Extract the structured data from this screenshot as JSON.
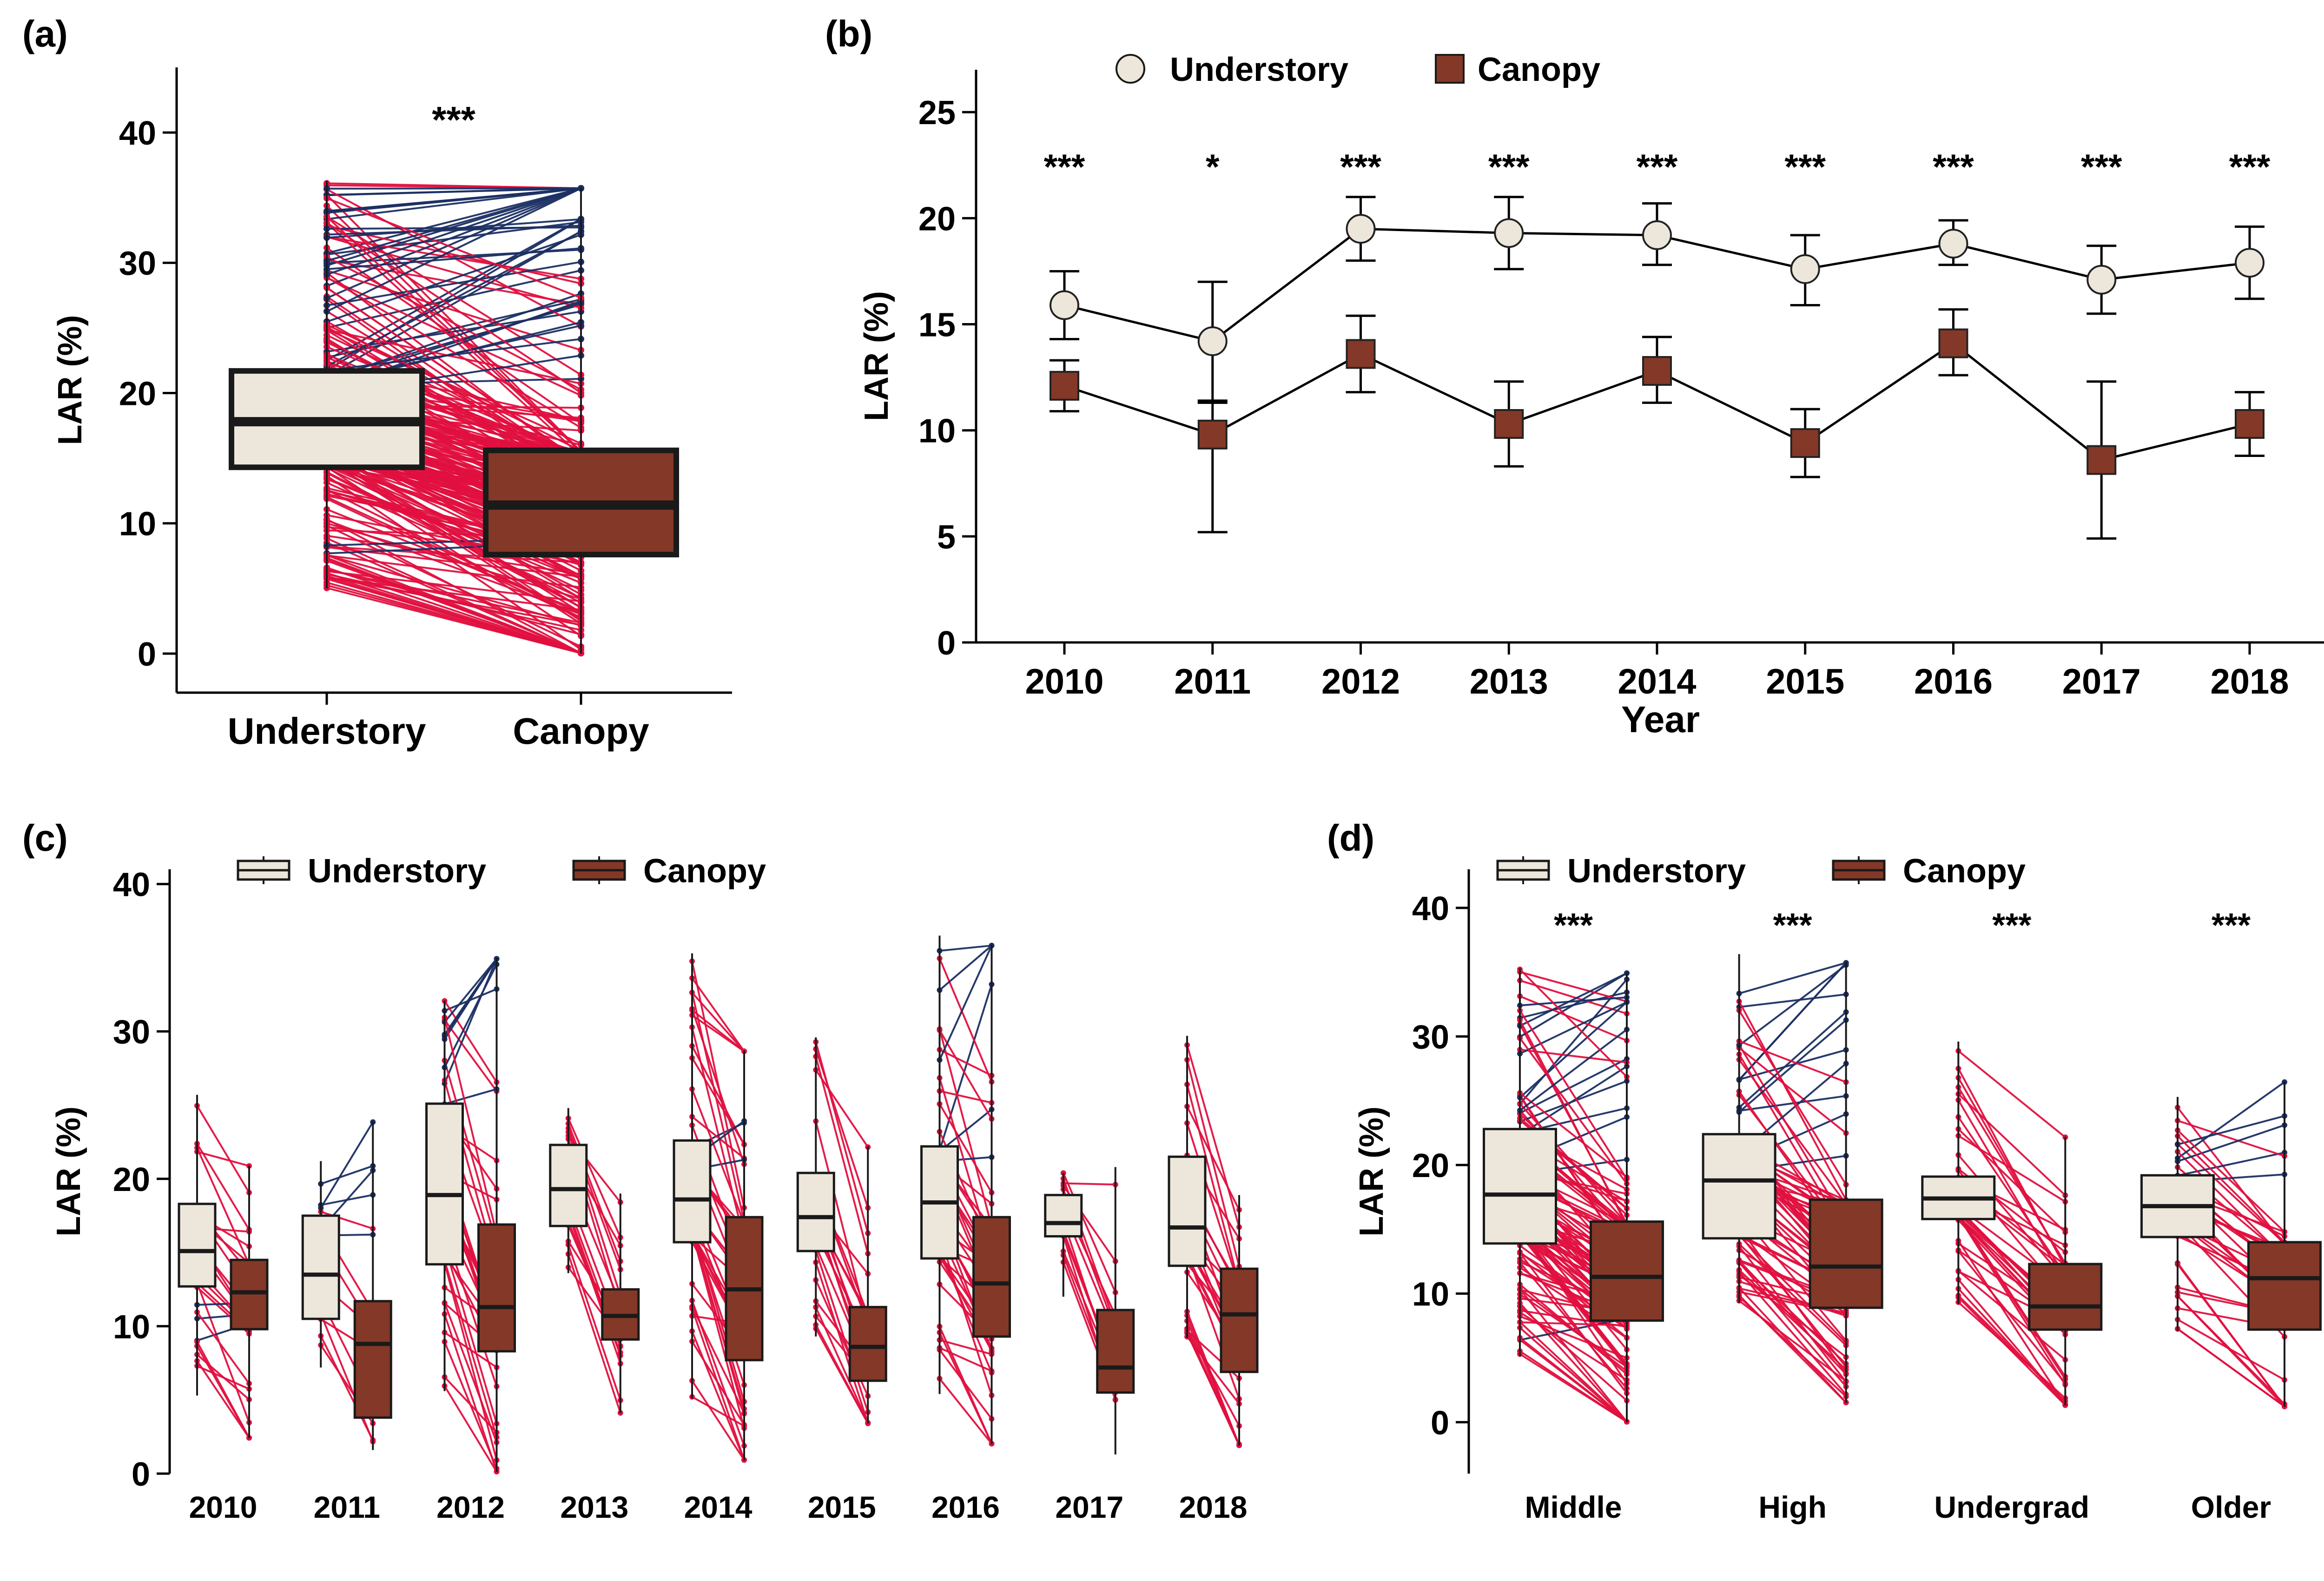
{
  "colors": {
    "understory": "#EDE7DB",
    "canopy": "#843827",
    "increase_line": "#E0103F",
    "decrease_line": "#1B2F63",
    "box_outline": "#1a1a1a",
    "axis": "#000000"
  },
  "chart_data": [
    {
      "panel": "(a)",
      "type": "box",
      "categories": [
        "Understory",
        "Canopy"
      ],
      "ylabel": "LAR (%)",
      "xlabel": "",
      "ylim": [
        -3,
        45
      ],
      "yticks": [
        0,
        10,
        20,
        30,
        40
      ],
      "boxes": [
        {
          "name": "Understory",
          "q1": 14.3,
          "median": 17.8,
          "q3": 21.7,
          "min": 5.0,
          "max": 36.3
        },
        {
          "name": "Canopy",
          "q1": 7.6,
          "median": 11.4,
          "q3": 15.6,
          "min": 0.0,
          "max": 35.8
        }
      ],
      "paired_lines": true,
      "annotation": "***"
    },
    {
      "panel": "(b)",
      "type": "line",
      "x": [
        "2010",
        "2011",
        "2012",
        "2013",
        "2014",
        "2015",
        "2016",
        "2017",
        "2018"
      ],
      "xlabel": "Year",
      "ylabel": "LAR (%)",
      "ylim": [
        0,
        27
      ],
      "yticks": [
        0,
        5,
        10,
        15,
        20,
        25
      ],
      "legend": "top",
      "series": [
        {
          "name": "Understory",
          "marker": "circle",
          "values": [
            15.9,
            14.2,
            19.5,
            19.3,
            19.2,
            17.6,
            18.8,
            17.1,
            17.9
          ],
          "lower": [
            14.3,
            11.4,
            18.0,
            17.6,
            17.8,
            15.9,
            17.8,
            15.5,
            16.2
          ],
          "upper": [
            17.5,
            17.0,
            21.0,
            21.0,
            20.7,
            19.2,
            19.9,
            18.7,
            19.6
          ]
        },
        {
          "name": "Canopy",
          "marker": "square",
          "values": [
            12.1,
            9.8,
            13.6,
            10.3,
            12.8,
            9.4,
            14.1,
            8.6,
            10.3
          ],
          "lower": [
            10.9,
            5.2,
            11.8,
            8.3,
            11.3,
            7.8,
            12.6,
            4.9,
            8.8
          ],
          "upper": [
            13.3,
            11.3,
            15.4,
            12.3,
            14.4,
            11.0,
            15.7,
            12.3,
            11.8
          ]
        }
      ],
      "annotations": [
        "***",
        "*",
        "***",
        "***",
        "***",
        "***",
        "***",
        "***",
        "***"
      ]
    },
    {
      "panel": "(c)",
      "type": "box",
      "categories": [
        "2010",
        "2011",
        "2012",
        "2013",
        "2014",
        "2015",
        "2016",
        "2017",
        "2018"
      ],
      "ylabel": "LAR (%)",
      "ylim": [
        0,
        41
      ],
      "yticks": [
        0,
        10,
        20,
        30,
        40
      ],
      "legend": "top",
      "series": [
        {
          "name": "Understory",
          "boxes": [
            {
              "q1": 12.7,
              "median": 15.1,
              "q3": 18.3,
              "min": 5.3,
              "max": 25.7
            },
            {
              "q1": 10.5,
              "median": 13.5,
              "q3": 17.5,
              "min": 7.2,
              "max": 21.2
            },
            {
              "q1": 14.2,
              "median": 18.9,
              "q3": 25.1,
              "min": 5.6,
              "max": 32.1
            },
            {
              "q1": 16.8,
              "median": 19.3,
              "q3": 22.3,
              "min": 13.6,
              "max": 24.8
            },
            {
              "q1": 15.7,
              "median": 18.6,
              "q3": 22.6,
              "min": 5.1,
              "max": 35.3
            },
            {
              "q1": 15.1,
              "median": 17.4,
              "q3": 20.4,
              "min": 9.3,
              "max": 29.6
            },
            {
              "q1": 14.6,
              "median": 18.4,
              "q3": 22.2,
              "min": 5.4,
              "max": 36.5
            },
            {
              "q1": 16.1,
              "median": 17.0,
              "q3": 18.9,
              "min": 12.0,
              "max": 20.4
            },
            {
              "q1": 14.1,
              "median": 16.7,
              "q3": 21.5,
              "min": 9.2,
              "max": 29.7
            }
          ]
        },
        {
          "name": "Canopy",
          "boxes": [
            {
              "q1": 9.8,
              "median": 12.3,
              "q3": 14.5,
              "min": 2.4,
              "max": 20.9
            },
            {
              "q1": 3.8,
              "median": 8.8,
              "q3": 11.7,
              "min": 1.6,
              "max": 23.9
            },
            {
              "q1": 8.3,
              "median": 11.3,
              "q3": 16.9,
              "min": 0.1,
              "max": 35.0
            },
            {
              "q1": 9.1,
              "median": 10.7,
              "q3": 12.5,
              "min": 4.1,
              "max": 19.0
            },
            {
              "q1": 7.7,
              "median": 12.5,
              "q3": 17.4,
              "min": 0.9,
              "max": 28.7
            },
            {
              "q1": 6.3,
              "median": 8.6,
              "q3": 11.3,
              "min": 3.4,
              "max": 22.2
            },
            {
              "q1": 9.3,
              "median": 12.9,
              "q3": 17.4,
              "min": 2.0,
              "max": 35.9
            },
            {
              "q1": 5.5,
              "median": 7.2,
              "q3": 11.1,
              "min": 1.3,
              "max": 20.8
            },
            {
              "q1": 6.9,
              "median": 10.8,
              "q3": 13.9,
              "min": 1.9,
              "max": 18.9
            }
          ]
        }
      ],
      "paired_lines": true
    },
    {
      "panel": "(d)",
      "type": "box",
      "categories": [
        "Middle",
        "High",
        "Undergrad",
        "Older"
      ],
      "ylabel": "LAR (%)",
      "ylim": [
        -4,
        43
      ],
      "yticks": [
        0,
        10,
        20,
        30,
        40
      ],
      "legend": "top",
      "series": [
        {
          "name": "Understory",
          "boxes": [
            {
              "q1": 13.9,
              "median": 17.7,
              "q3": 22.8,
              "min": 5.1,
              "max": 35.3
            },
            {
              "q1": 14.3,
              "median": 18.8,
              "q3": 22.4,
              "min": 9.3,
              "max": 36.4
            },
            {
              "q1": 15.8,
              "median": 17.4,
              "q3": 19.1,
              "min": 9.2,
              "max": 29.6
            },
            {
              "q1": 14.4,
              "median": 16.8,
              "q3": 19.2,
              "min": 7.1,
              "max": 25.3
            }
          ]
        },
        {
          "name": "Canopy",
          "boxes": [
            {
              "q1": 7.9,
              "median": 11.3,
              "q3": 15.6,
              "min": 0.0,
              "max": 35.0
            },
            {
              "q1": 8.9,
              "median": 12.1,
              "q3": 17.3,
              "min": 1.5,
              "max": 35.8
            },
            {
              "q1": 7.2,
              "median": 9.0,
              "q3": 12.3,
              "min": 1.3,
              "max": 22.2
            },
            {
              "q1": 7.2,
              "median": 11.2,
              "q3": 14.0,
              "min": 1.2,
              "max": 26.5
            }
          ]
        }
      ],
      "paired_lines": true,
      "annotations": [
        "***",
        "***",
        "***",
        "***"
      ]
    }
  ]
}
